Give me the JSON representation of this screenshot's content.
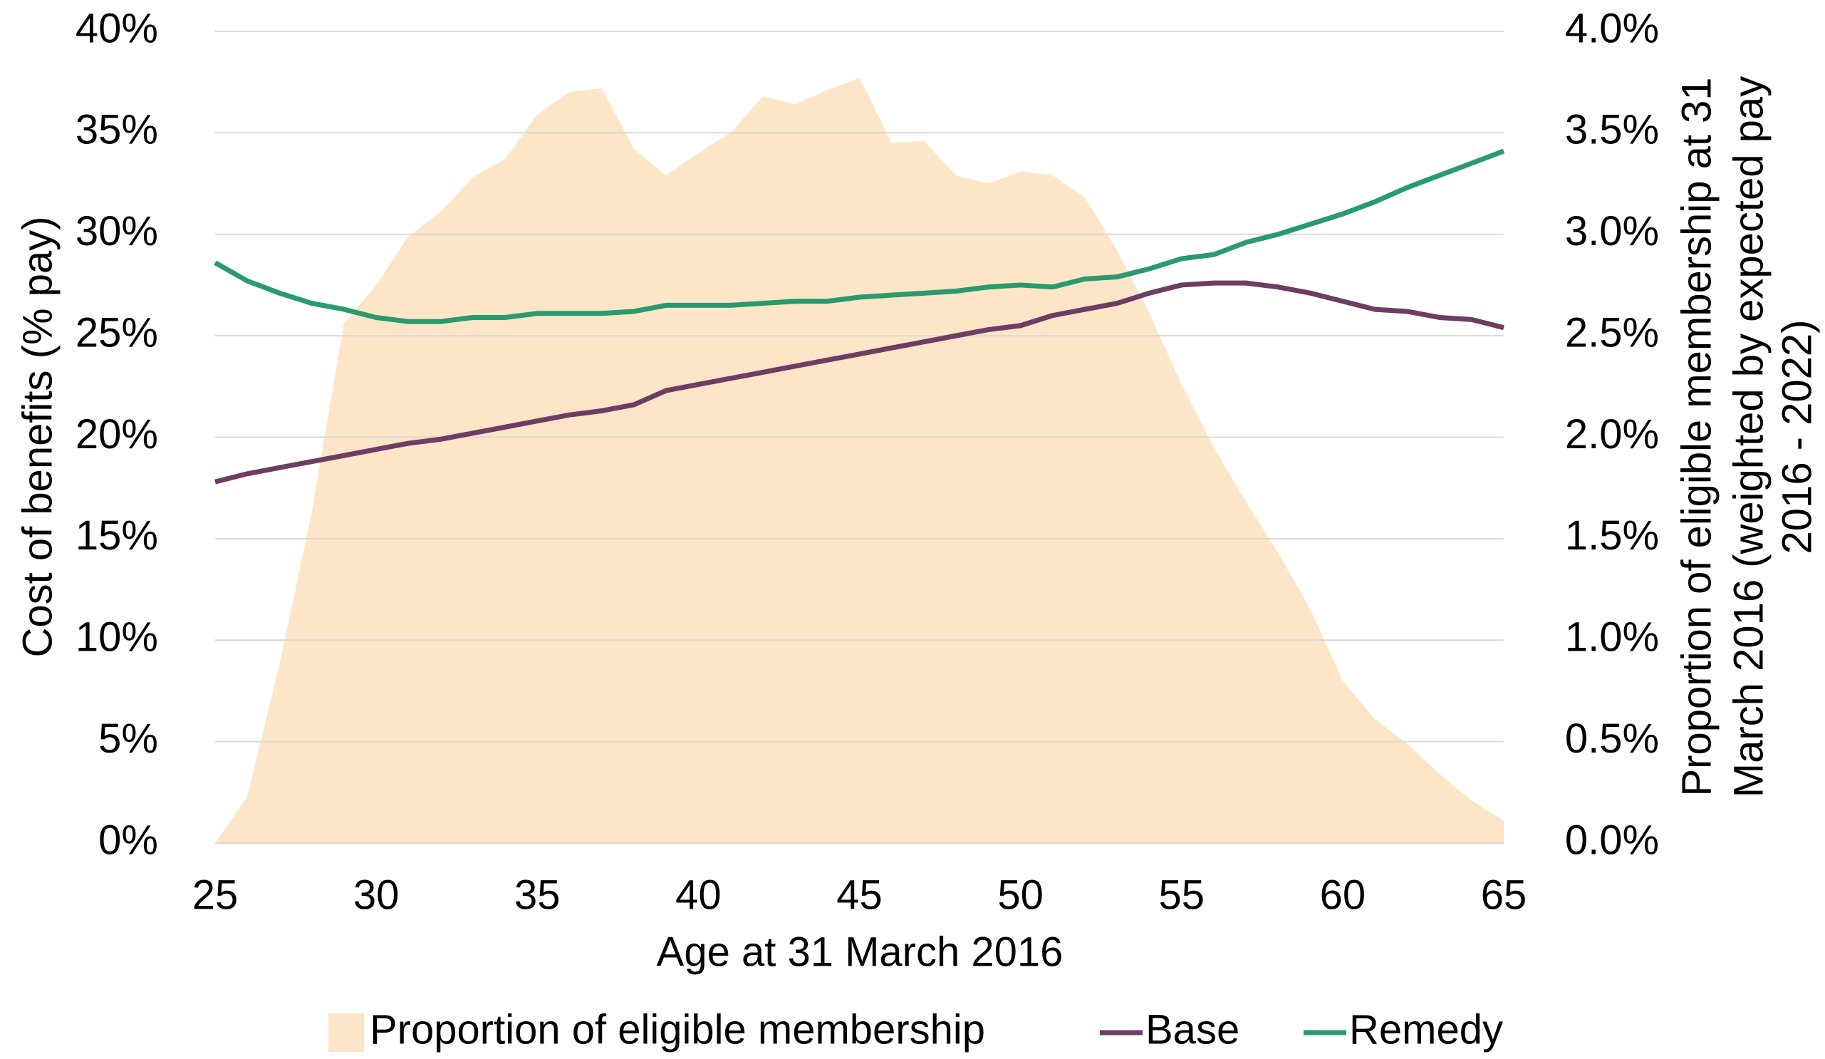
{
  "chart_data": {
    "type": "line",
    "xlabel": "Age at 31 March 2016",
    "ylabel": "Cost of benefits (% pay)",
    "y2label": [
      "Proportion of eligible membership at 31",
      "March 2016 (weighted by expected pay",
      "2016 - 2022)"
    ],
    "x": [
      25,
      26,
      27,
      28,
      29,
      30,
      31,
      32,
      33,
      34,
      35,
      36,
      37,
      38,
      39,
      40,
      41,
      42,
      43,
      44,
      45,
      46,
      47,
      48,
      49,
      50,
      51,
      52,
      53,
      54,
      55,
      56,
      57,
      58,
      59,
      60,
      61,
      62,
      63,
      64,
      65
    ],
    "series": [
      {
        "name": "Proportion of eligible membership",
        "type": "area",
        "axis": "y2",
        "color": "#fde5c7",
        "values": [
          0,
          0.23,
          0.88,
          1.63,
          2.56,
          2.75,
          2.99,
          3.11,
          3.28,
          3.37,
          3.59,
          3.7,
          3.72,
          3.42,
          3.29,
          3.4,
          3.5,
          3.68,
          3.64,
          3.71,
          3.77,
          3.45,
          3.46,
          3.29,
          3.25,
          3.31,
          3.29,
          3.18,
          2.92,
          2.61,
          2.26,
          1.95,
          1.68,
          1.43,
          1.15,
          0.8,
          0.61,
          0.49,
          0.34,
          0.21,
          0.11
        ]
      },
      {
        "name": "Base",
        "type": "line",
        "color": "#6e3d63",
        "values": [
          17.8,
          18.2,
          18.5,
          18.8,
          19.1,
          19.4,
          19.7,
          19.9,
          20.2,
          20.5,
          20.8,
          21.1,
          21.3,
          21.6,
          22.3,
          22.6,
          22.9,
          23.2,
          23.5,
          23.8,
          24.1,
          24.4,
          24.7,
          25.0,
          25.3,
          25.5,
          26.0,
          26.3,
          26.6,
          27.1,
          27.5,
          27.6,
          27.6,
          27.4,
          27.1,
          26.7,
          26.3,
          26.2,
          25.9,
          25.8,
          25.4
        ]
      },
      {
        "name": "Remedy",
        "type": "line",
        "color": "#299b6e",
        "values": [
          28.6,
          27.7,
          27.1,
          26.6,
          26.3,
          25.9,
          25.7,
          25.7,
          25.9,
          25.9,
          26.1,
          26.1,
          26.1,
          26.2,
          26.5,
          26.5,
          26.5,
          26.6,
          26.7,
          26.7,
          26.9,
          27.0,
          27.1,
          27.2,
          27.4,
          27.5,
          27.4,
          27.8,
          27.9,
          28.3,
          28.8,
          29.0,
          29.6,
          30.0,
          30.5,
          31.0,
          31.6,
          32.3,
          32.9,
          33.5,
          34.1
        ]
      }
    ],
    "xlim": [
      25,
      65
    ],
    "xticks": [
      25,
      30,
      35,
      40,
      45,
      50,
      55,
      60,
      65
    ],
    "ylim": [
      0,
      40
    ],
    "yticks": [
      {
        "value": 0,
        "label": "0%"
      },
      {
        "value": 5,
        "label": "5%"
      },
      {
        "value": 10,
        "label": "10%"
      },
      {
        "value": 15,
        "label": "15%"
      },
      {
        "value": 20,
        "label": "20%"
      },
      {
        "value": 25,
        "label": "25%"
      },
      {
        "value": 30,
        "label": "30%"
      },
      {
        "value": 35,
        "label": "35%"
      },
      {
        "value": 40,
        "label": "40%"
      }
    ],
    "y2lim": [
      0,
      4
    ],
    "y2ticks": [
      {
        "value": 0,
        "label": "0.0%"
      },
      {
        "value": 0.5,
        "label": "0.5%"
      },
      {
        "value": 1,
        "label": "1.0%"
      },
      {
        "value": 1.5,
        "label": "1.5%"
      },
      {
        "value": 2,
        "label": "2.0%"
      },
      {
        "value": 2.5,
        "label": "2.5%"
      },
      {
        "value": 3,
        "label": "3.0%"
      },
      {
        "value": 3.5,
        "label": "3.5%"
      },
      {
        "value": 4,
        "label": "4.0%"
      }
    ],
    "grid": true,
    "legend": "bottom"
  }
}
